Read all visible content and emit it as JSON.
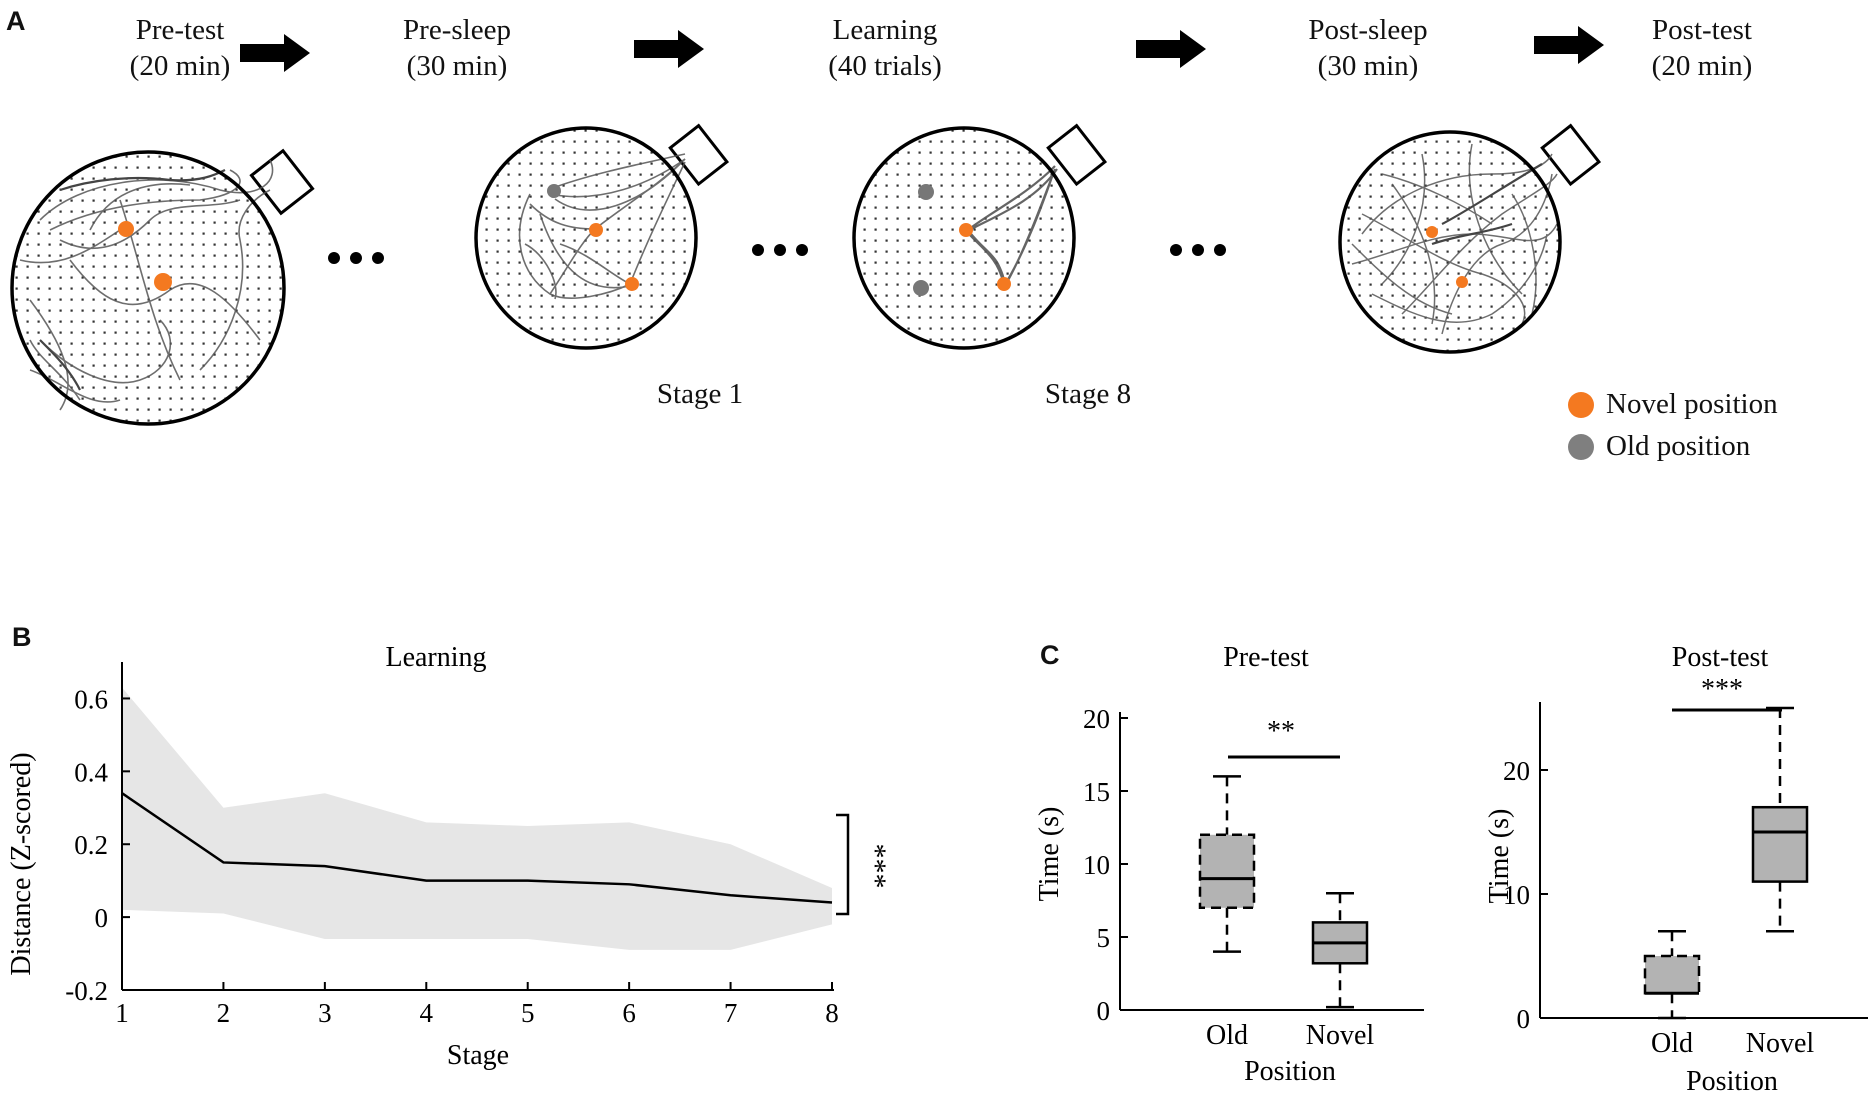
{
  "panels": {
    "a": "A",
    "b": "B",
    "c": "C"
  },
  "phases": [
    {
      "name": "Pre-test",
      "duration": "(20 min)"
    },
    {
      "name": "Pre-sleep",
      "duration": "(30 min)"
    },
    {
      "name": "Learning",
      "duration": "(40 trials)"
    },
    {
      "name": "Post-sleep",
      "duration": "(30 min)"
    },
    {
      "name": "Post-test",
      "duration": "(20 min)"
    }
  ],
  "stage_labels": [
    "Stage 1",
    "Stage 8"
  ],
  "legend": {
    "novel": "Novel position",
    "old": "Old position"
  },
  "colors": {
    "novel": "#F47920",
    "old": "#7F7F7F",
    "track": "#555555",
    "band": "#E6E6E6",
    "box": "#B3B3B3"
  },
  "chart_data": [
    {
      "type": "line",
      "title": "Learning",
      "xlabel": "Stage",
      "ylabel": "Distance (Z-scored)",
      "x": [
        1,
        2,
        3,
        4,
        5,
        6,
        7,
        8
      ],
      "xticks": [
        "1",
        "2",
        "3",
        "4",
        "5",
        "6",
        "7",
        "8"
      ],
      "yticks": [
        "-0.2",
        "0",
        "0.2",
        "0.4",
        "0.6"
      ],
      "ylim": [
        -0.2,
        0.7
      ],
      "series": [
        {
          "values": [
            0.34,
            0.15,
            0.14,
            0.1,
            0.1,
            0.09,
            0.06,
            0.04
          ],
          "lower": [
            0.02,
            0.01,
            -0.06,
            -0.06,
            -0.06,
            -0.09,
            -0.09,
            -0.02
          ],
          "upper": [
            0.63,
            0.3,
            0.34,
            0.26,
            0.25,
            0.26,
            0.2,
            0.08
          ]
        }
      ],
      "significance": "***"
    },
    {
      "type": "box",
      "title": "Pre-test",
      "xlabel": "Position",
      "ylabel": "Time (s)",
      "categories": [
        "Old",
        "Novel"
      ],
      "yticks": [
        "0",
        "5",
        "10",
        "15",
        "20"
      ],
      "ylim": [
        0,
        20
      ],
      "boxes": [
        {
          "min": 4,
          "q1": 7,
          "median": 9,
          "q3": 12,
          "max": 16
        },
        {
          "min": 0.2,
          "q1": 3.2,
          "median": 4.6,
          "q3": 6,
          "max": 8
        }
      ],
      "significance": "**"
    },
    {
      "type": "box",
      "title": "Post-test",
      "xlabel": "Position",
      "ylabel": "Time (s)",
      "categories": [
        "Old",
        "Novel"
      ],
      "yticks": [
        "0",
        "10",
        "20"
      ],
      "ylim": [
        0,
        25
      ],
      "boxes": [
        {
          "min": 0,
          "q1": 2,
          "median": 2,
          "q3": 5,
          "max": 7
        },
        {
          "min": 7,
          "q1": 11,
          "median": 15,
          "q3": 17,
          "max": 25
        }
      ],
      "significance": "***"
    }
  ]
}
